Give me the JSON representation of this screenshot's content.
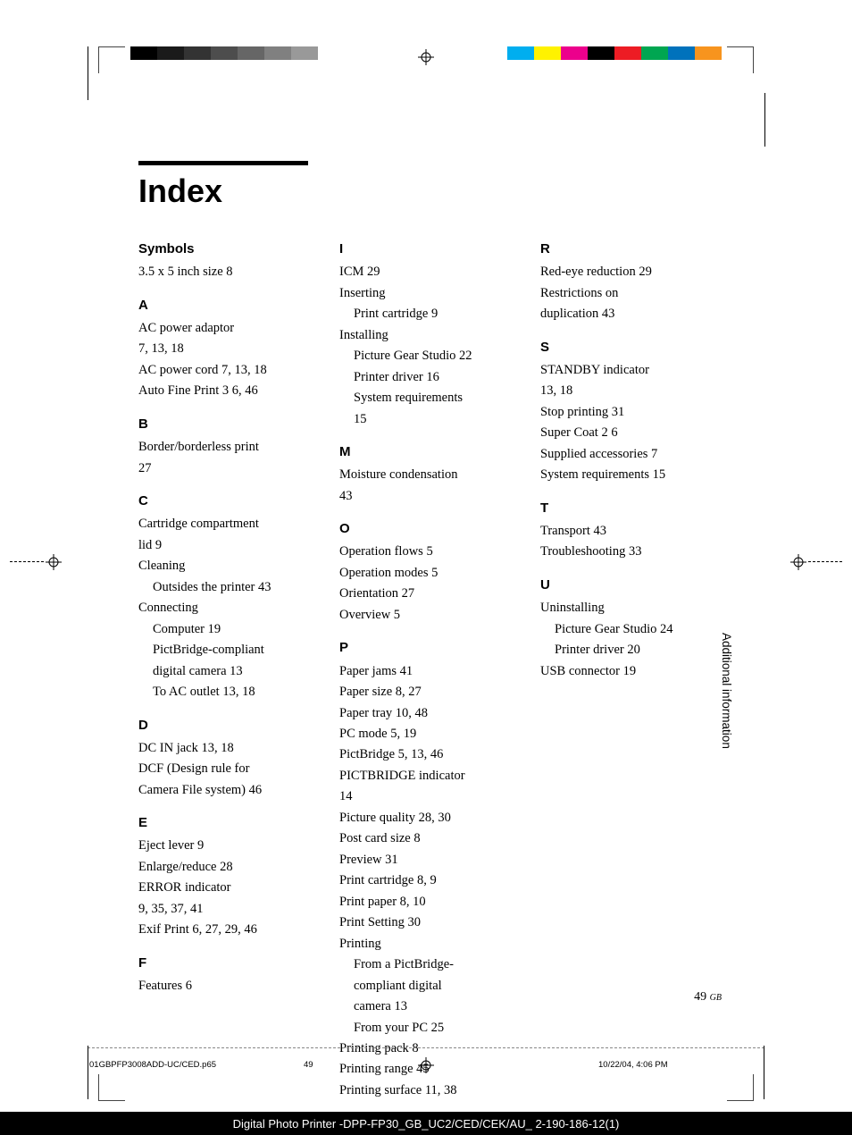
{
  "title": "Index",
  "side_label": "Additional information",
  "page_number": "49",
  "page_suffix": "GB",
  "footer": {
    "left": "01GBPFP3008ADD-UC/CED.p65",
    "mid": "49",
    "right": "10/22/04, 4:06 PM"
  },
  "bottom_bar": "Digital Photo Printer -DPP-FP30_GB_UC2/CED/CEK/AU_ 2-190-186-12(1)",
  "gray_squares": [
    "#000000",
    "#1a1a1a",
    "#333333",
    "#4d4d4d",
    "#666666",
    "#808080",
    "#999999",
    "#ffffff"
  ],
  "color_squares": [
    "#ffffff",
    "#00aeef",
    "#fff200",
    "#ec008c",
    "#000000",
    "#ed1c24",
    "#00a651",
    "#0072bc",
    "#f7941e"
  ],
  "columns": [
    [
      {
        "h": "Symbols",
        "first": true
      },
      {
        "e": "3.5 x 5 inch size  8"
      },
      {
        "h": "A"
      },
      {
        "e": "AC power adaptor"
      },
      {
        "e": "7,  13,  18"
      },
      {
        "e": "AC power cord  7,  13,  18"
      },
      {
        "e": "Auto Fine Print 3  6,  46"
      },
      {
        "h": "B"
      },
      {
        "e": "Border/borderless print"
      },
      {
        "e": "27"
      },
      {
        "h": "C"
      },
      {
        "e": "Cartridge compartment"
      },
      {
        "e": "lid  9"
      },
      {
        "e": "Cleaning"
      },
      {
        "s": "Outsides the printer  43"
      },
      {
        "e": "Connecting"
      },
      {
        "s": "Computer  19"
      },
      {
        "s": "PictBridge-compliant"
      },
      {
        "s": "digital camera  13"
      },
      {
        "s": "To AC outlet  13,  18"
      },
      {
        "h": "D"
      },
      {
        "e": "DC IN jack  13,  18"
      },
      {
        "e": "DCF (Design rule for"
      },
      {
        "e": "Camera File system)  46"
      },
      {
        "h": "E"
      },
      {
        "e": "Eject lever  9"
      },
      {
        "e": "Enlarge/reduce  28"
      },
      {
        "e": "ERROR indicator"
      },
      {
        "e": "9,  35,  37,  41"
      },
      {
        "e": "Exif Print  6,  27,  29,  46"
      },
      {
        "h": "F"
      },
      {
        "e": "Features  6"
      }
    ],
    [
      {
        "h": "I",
        "first": true
      },
      {
        "e": "ICM  29"
      },
      {
        "e": "Inserting"
      },
      {
        "s": "Print cartridge  9"
      },
      {
        "e": "Installing"
      },
      {
        "s": "Picture Gear Studio  22"
      },
      {
        "s": "Printer driver  16"
      },
      {
        "s": "System requirements"
      },
      {
        "s": "15"
      },
      {
        "h": "M"
      },
      {
        "e": "Moisture condensation"
      },
      {
        "e": "43"
      },
      {
        "h": "O"
      },
      {
        "e": "Operation flows  5"
      },
      {
        "e": "Operation modes  5"
      },
      {
        "e": "Orientation  27"
      },
      {
        "e": "Overview  5"
      },
      {
        "h": "P"
      },
      {
        "e": "Paper jams  41"
      },
      {
        "e": "Paper size  8,  27"
      },
      {
        "e": "Paper tray  10,  48"
      },
      {
        "e": "PC mode  5,  19"
      },
      {
        "e": "PictBridge  5,  13,  46"
      },
      {
        "e": "PICTBRIDGE indicator"
      },
      {
        "e": "14"
      },
      {
        "e": "Picture quality  28,  30"
      },
      {
        "e": "Post card size  8"
      },
      {
        "e": "Preview  31"
      },
      {
        "e": "Print cartridge  8,  9"
      },
      {
        "e": "Print paper  8,  10"
      },
      {
        "e": "Print Setting  30"
      },
      {
        "e": "Printing"
      },
      {
        "s": "From a PictBridge-"
      },
      {
        "s": "compliant digital"
      },
      {
        "s": "camera  13"
      },
      {
        "s": "From your PC  25"
      },
      {
        "e": "Printing pack  8"
      },
      {
        "e": "Printing range  45"
      },
      {
        "e": "Printing surface  11,  38"
      }
    ],
    [
      {
        "h": "R",
        "first": true
      },
      {
        "e": "Red-eye reduction  29"
      },
      {
        "e": "Restrictions on"
      },
      {
        "e": "duplication  43"
      },
      {
        "h": "S"
      },
      {
        "e": "STANDBY indicator"
      },
      {
        "e": "13,  18"
      },
      {
        "e": "Stop printing  31"
      },
      {
        "e": "Super Coat 2  6"
      },
      {
        "e": "Supplied accessories  7"
      },
      {
        "e": "System requirements  15"
      },
      {
        "h": "T"
      },
      {
        "e": "Transport  43"
      },
      {
        "e": "Troubleshooting  33"
      },
      {
        "h": "U"
      },
      {
        "e": "Uninstalling"
      },
      {
        "s": "Picture Gear Studio  24"
      },
      {
        "s": "Printer driver  20"
      },
      {
        "e": "USB connector  19"
      }
    ]
  ]
}
